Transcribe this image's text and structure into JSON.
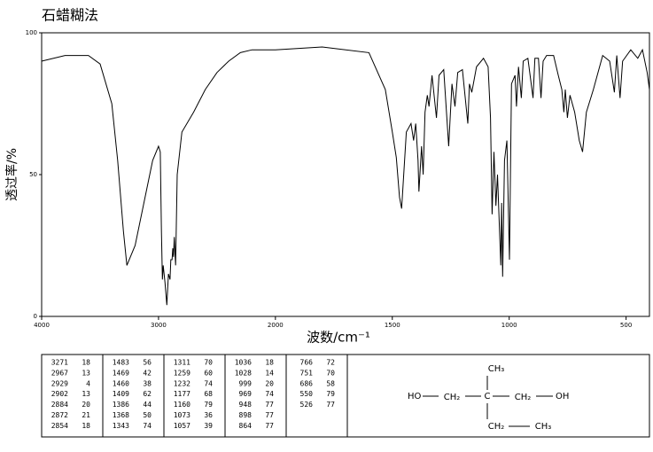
{
  "chart_data": {
    "type": "line",
    "title": "石蜡糊法",
    "y_label": "透过率/%",
    "x_label": "波数/cm⁻¹",
    "xlim": [
      4000,
      400
    ],
    "xscale": {
      "break": 2000,
      "factor": 2
    },
    "xticks": [
      4000,
      3000,
      2000,
      1500,
      1000,
      500
    ],
    "ylim": [
      0,
      100
    ],
    "yticks": [
      0,
      50,
      100
    ],
    "color": "#000000",
    "x": [
      4000,
      3800,
      3600,
      3500,
      3400,
      3350,
      3300,
      3271,
      3200,
      3100,
      3050,
      3000,
      2985,
      2975,
      2967,
      2960,
      2945,
      2929,
      2915,
      2902,
      2895,
      2884,
      2878,
      2872,
      2865,
      2854,
      2840,
      2800,
      2700,
      2600,
      2500,
      2400,
      2300,
      2200,
      2000,
      1800,
      1600,
      1530,
      1500,
      1483,
      1469,
      1460,
      1440,
      1420,
      1409,
      1400,
      1390,
      1386,
      1375,
      1368,
      1360,
      1350,
      1343,
      1330,
      1311,
      1300,
      1280,
      1259,
      1245,
      1232,
      1220,
      1200,
      1177,
      1170,
      1160,
      1140,
      1110,
      1090,
      1080,
      1073,
      1065,
      1057,
      1050,
      1036,
      1032,
      1028,
      1020,
      1010,
      999,
      990,
      975,
      969,
      960,
      948,
      940,
      920,
      898,
      890,
      875,
      864,
      855,
      840,
      810,
      790,
      775,
      766,
      760,
      751,
      740,
      720,
      700,
      686,
      670,
      640,
      600,
      570,
      550,
      540,
      526,
      515,
      480,
      450,
      430,
      410,
      400
    ],
    "values": [
      90,
      92,
      92,
      89,
      75,
      55,
      30,
      18,
      25,
      45,
      55,
      60,
      58,
      30,
      13,
      18,
      12,
      4,
      15,
      13,
      20,
      20,
      24,
      21,
      28,
      18,
      50,
      65,
      72,
      80,
      86,
      90,
      93,
      94,
      94,
      95,
      93,
      80,
      65,
      56,
      42,
      38,
      65,
      68,
      62,
      68,
      55,
      44,
      60,
      50,
      72,
      78,
      74,
      85,
      70,
      85,
      87,
      60,
      82,
      74,
      86,
      87,
      68,
      82,
      79,
      88,
      91,
      88,
      70,
      36,
      58,
      39,
      50,
      18,
      40,
      14,
      55,
      62,
      20,
      82,
      85,
      74,
      88,
      77,
      90,
      91,
      77,
      91,
      91,
      77,
      90,
      92,
      92,
      85,
      80,
      72,
      80,
      70,
      78,
      72,
      62,
      58,
      72,
      80,
      92,
      90,
      79,
      92,
      77,
      90,
      94,
      91,
      94,
      86,
      80
    ]
  },
  "peak_table": {
    "columns": [
      [
        [
          3271,
          18
        ],
        [
          2967,
          13
        ],
        [
          2929,
          4
        ],
        [
          2902,
          13
        ],
        [
          2884,
          20
        ],
        [
          2872,
          21
        ],
        [
          2854,
          18
        ]
      ],
      [
        [
          1483,
          56
        ],
        [
          1469,
          42
        ],
        [
          1460,
          38
        ],
        [
          1409,
          62
        ],
        [
          1386,
          44
        ],
        [
          1368,
          50
        ],
        [
          1343,
          74
        ]
      ],
      [
        [
          1311,
          70
        ],
        [
          1259,
          60
        ],
        [
          1232,
          74
        ],
        [
          1177,
          68
        ],
        [
          1160,
          79
        ],
        [
          1073,
          36
        ],
        [
          1057,
          39
        ]
      ],
      [
        [
          1036,
          18
        ],
        [
          1028,
          14
        ],
        [
          999,
          20
        ],
        [
          969,
          74
        ],
        [
          948,
          77
        ],
        [
          898,
          77
        ],
        [
          864,
          77
        ]
      ],
      [
        [
          766,
          72
        ],
        [
          751,
          70
        ],
        [
          686,
          58
        ],
        [
          550,
          79
        ],
        [
          526,
          77
        ]
      ]
    ]
  },
  "structure": {
    "labels": [
      "HO",
      "CH₂",
      "C",
      "CH₂",
      "OH",
      "CH₃",
      "CH₂",
      "CH₃"
    ]
  }
}
